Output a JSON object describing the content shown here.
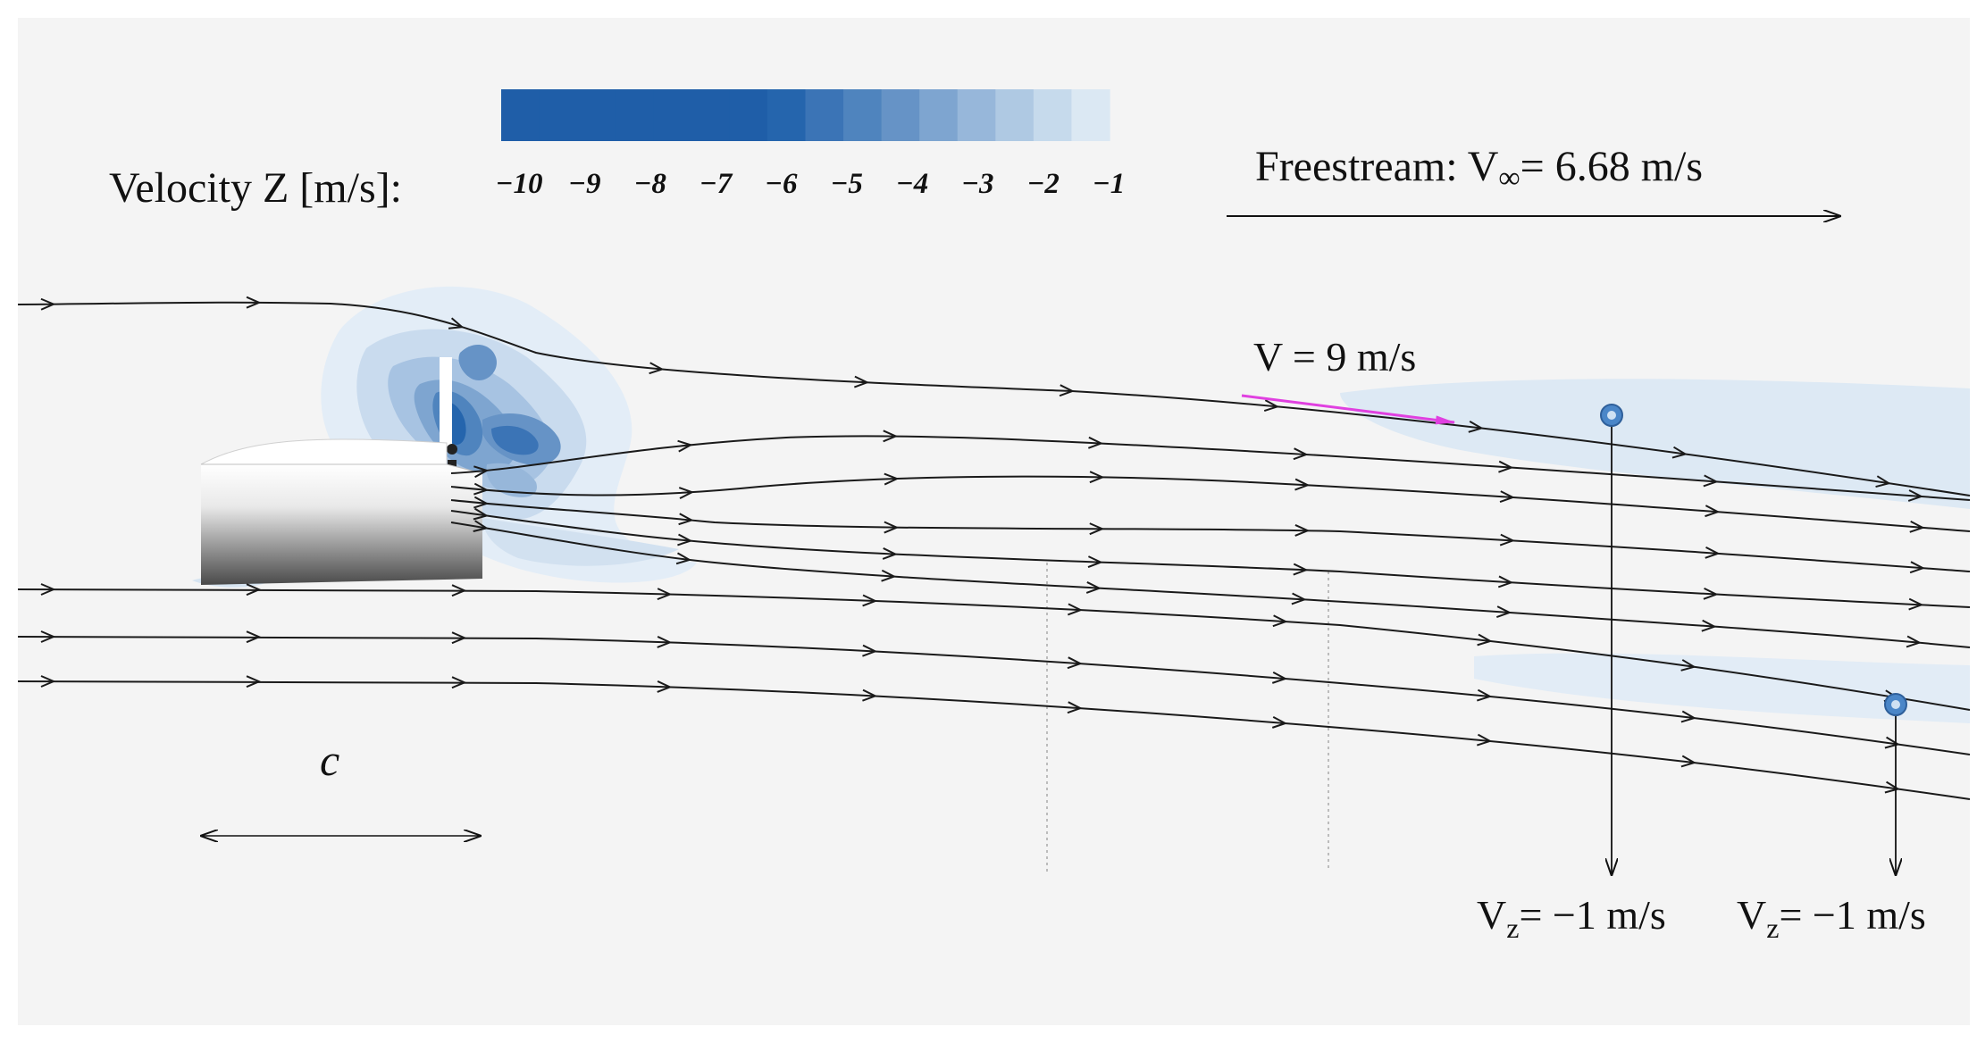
{
  "colorbar": {
    "label": "Velocity Z [m/s]:",
    "ticks": [
      "−10",
      "−9",
      "−8",
      "−7",
      "−6",
      "−5",
      "−4",
      "−3",
      "−2",
      "−1"
    ],
    "colors": [
      "#1f5ea8",
      "#1f5ea8",
      "#1f5ea8",
      "#1f5ea8",
      "#1f5ea8",
      "#1f5ea8",
      "#1f5ea8",
      "#2565ad",
      "#3b74b6",
      "#4f84be",
      "#6693c6",
      "#7ea5d0",
      "#97b7da",
      "#afc9e3",
      "#c6daec",
      "#dbe8f3"
    ]
  },
  "freestream": {
    "label_main": "Freestream: V",
    "label_sub": "∞",
    "label_value": "= 6.68 m/s"
  },
  "velocity_marker": {
    "label": "V = 9 m/s",
    "color": "#e040e0"
  },
  "chord": {
    "label": "c"
  },
  "probes": [
    {
      "label_main": "V",
      "label_sub": "z",
      "label_value": "= −1 m/s"
    },
    {
      "label_main": "V",
      "label_sub": "z",
      "label_value": "= −1 m/s"
    }
  ],
  "colors": {
    "background": "#f4f4f4",
    "streamline": "#1a1a1a",
    "probe": "#4a86c8"
  }
}
